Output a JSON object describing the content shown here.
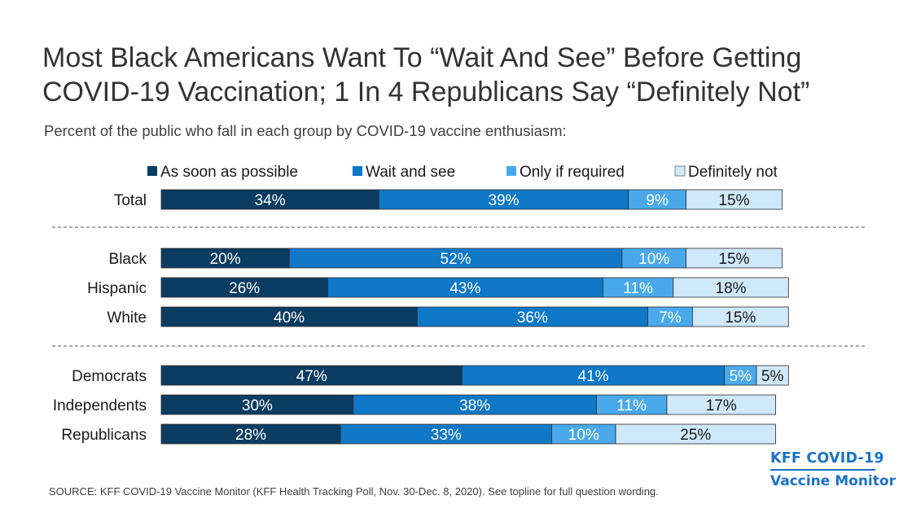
{
  "title_line1": "Most Black Americans Want To “Wait And See” Before Getting",
  "title_line2": "COVID-19 Vaccination; 1 In 4 Republicans Say “Definitely Not”",
  "subtitle": "Percent of the public who fall in each group by COVID-19 vaccine enthusiasm:",
  "source": "SOURCE: KFF COVID-19 Vaccine Monitor (KFF Health Tracking Poll, Nov. 30-Dec. 8, 2020). See topline for full question wording.",
  "logo": {
    "line1": "KFF COVID-19",
    "line2": "Vaccine Monitor"
  },
  "chart_data": {
    "type": "bar",
    "orientation": "horizontal",
    "stacked": true,
    "legend_placement": "top",
    "value_suffix": "%",
    "categories": [
      "Total",
      "Black",
      "Hispanic",
      "White",
      "Democrats",
      "Independents",
      "Republicans"
    ],
    "groups": [
      [
        "Total"
      ],
      [
        "Black",
        "Hispanic",
        "White"
      ],
      [
        "Democrats",
        "Independents",
        "Republicans"
      ]
    ],
    "series": [
      {
        "name": "As soon as possible",
        "color": "#0b3c61",
        "values": [
          34,
          20,
          26,
          40,
          47,
          30,
          28
        ]
      },
      {
        "name": "Wait and see",
        "color": "#0f78c7",
        "values": [
          39,
          52,
          43,
          36,
          41,
          38,
          33
        ]
      },
      {
        "name": "Only if required",
        "color": "#4aa9eb",
        "values": [
          9,
          10,
          11,
          7,
          5,
          11,
          10
        ]
      },
      {
        "name": "Definitely not",
        "color": "#cfe8fa",
        "values": [
          15,
          15,
          18,
          15,
          5,
          17,
          25
        ]
      }
    ]
  }
}
